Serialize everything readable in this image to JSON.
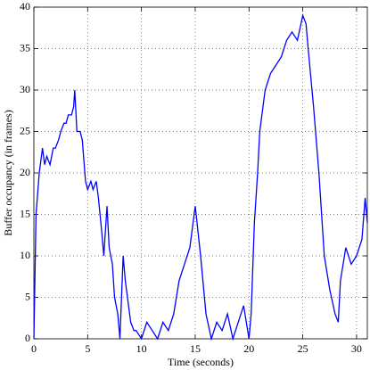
{
  "chart_data": {
    "type": "line",
    "x_label": "Time (seconds)",
    "y_label": "Buffer occupancy (in frames)",
    "x": [
      0,
      0.2,
      0.5,
      0.8,
      1,
      1.2,
      1.5,
      1.8,
      2,
      2.3,
      2.5,
      2.8,
      3,
      3.2,
      3.5,
      3.7,
      3.8,
      4,
      4.3,
      4.5,
      4.8,
      5,
      5.3,
      5.5,
      5.8,
      6,
      6.3,
      6.5,
      6.8,
      7,
      7.3,
      7.5,
      7.8,
      8,
      8.3,
      8.5,
      8.8,
      9,
      9.3,
      9.5,
      10,
      10.5,
      11,
      11.5,
      12,
      12.5,
      13,
      13.5,
      14,
      14.5,
      15,
      15.5,
      16,
      16.5,
      17,
      17.5,
      18,
      18.5,
      19,
      19.5,
      20,
      20.2,
      20.5,
      20.8,
      21,
      21.3,
      21.5,
      22,
      22.5,
      23,
      23.5,
      24,
      24.5,
      25,
      25.3,
      25.5,
      26,
      26.5,
      27,
      27.5,
      28,
      28.3,
      28.5,
      29,
      29.5,
      30,
      30.5,
      30.8,
      31
    ],
    "series": [
      {
        "name": "Buffer occupancy",
        "color": "#0000ff",
        "values": [
          0,
          15,
          20,
          23,
          21,
          22,
          21,
          23,
          23,
          24,
          25,
          26,
          26,
          27,
          27,
          28,
          30,
          25,
          25,
          24,
          19,
          18,
          19,
          18,
          19,
          17,
          13,
          10,
          16,
          11,
          9,
          5,
          3,
          0,
          10,
          7,
          4,
          2,
          1,
          1,
          0,
          2,
          1,
          0,
          2,
          1,
          3,
          7,
          9,
          11,
          16,
          10,
          3,
          0,
          2,
          1,
          3,
          0,
          2,
          4,
          0,
          3,
          14,
          20,
          25,
          28,
          30,
          32,
          33,
          34,
          36,
          37,
          36,
          39,
          38,
          35,
          28,
          20,
          10,
          6,
          3,
          2,
          7,
          11,
          9,
          10,
          12,
          17,
          14
        ]
      }
    ],
    "xlim": [
      0,
      31
    ],
    "ylim": [
      0,
      40
    ],
    "xticks": [
      0,
      5,
      10,
      15,
      20,
      25,
      30
    ],
    "yticks": [
      0,
      5,
      10,
      15,
      20,
      25,
      30,
      35,
      40
    ],
    "grid": true
  }
}
